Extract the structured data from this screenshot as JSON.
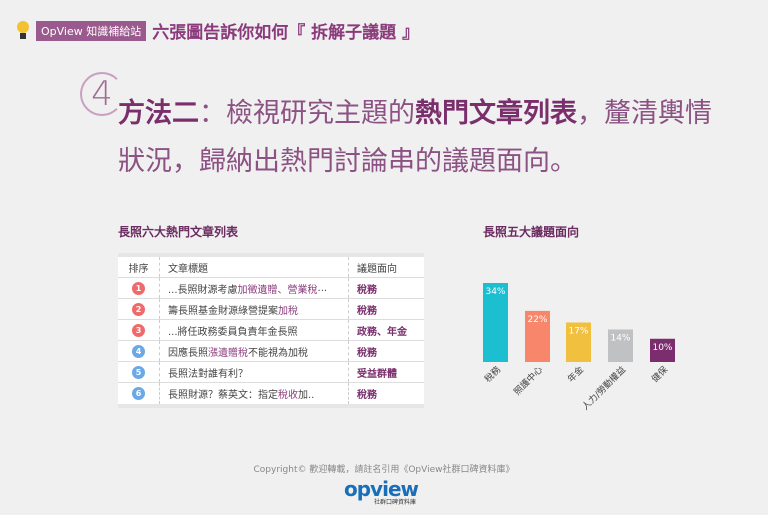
{
  "header": {
    "tag": "OpView 知識補給站",
    "title": "六張圖告訴你如何『 拆解子議題 』"
  },
  "step_number": "4",
  "main": {
    "prefix": "方法二",
    "text1": "：檢視研究主題的",
    "bold": "熱門文章列表",
    "text2": "，釐清輿情狀況，歸納出熱門討論串的議題面向。"
  },
  "table": {
    "title": "長照六大熱門文章列表",
    "headers": [
      "排序",
      "文章標題",
      "議題面向"
    ],
    "rows": [
      {
        "rank": "1",
        "color": "#ef6b6b",
        "pre": "...長照財源考慮",
        "hl": "加徵遺贈、營業稅",
        "post": "...",
        "topic": "稅務"
      },
      {
        "rank": "2",
        "color": "#ef6b6b",
        "pre": "籌長照基金財源綠營提案",
        "hl": "加稅",
        "post": "",
        "topic": "稅務"
      },
      {
        "rank": "3",
        "color": "#ef6b6b",
        "pre": "...將任政務委員負責年金長照",
        "hl": "",
        "post": "",
        "topic": "政務、年金"
      },
      {
        "rank": "4",
        "color": "#6aa8e8",
        "pre": "因應長照",
        "hl": "漲遺贈稅",
        "post": "不能視為加稅",
        "topic": "稅務"
      },
      {
        "rank": "5",
        "color": "#6aa8e8",
        "pre": "長照法對誰有利？",
        "hl": "",
        "post": "",
        "topic": "受益群體"
      },
      {
        "rank": "6",
        "color": "#6aa8e8",
        "pre": "長照財源？蔡英文：指定",
        "hl": "稅收",
        "post": "加..",
        "topic": "稅務"
      }
    ]
  },
  "chart_data": {
    "type": "bar",
    "title": "長照五大議題面向",
    "categories": [
      "稅務",
      "照護中心",
      "年金",
      "人力/勞動權益",
      "健保"
    ],
    "values": [
      34,
      22,
      17,
      14,
      10
    ],
    "value_labels": [
      "34%",
      "22%",
      "17%",
      "14%",
      "10%"
    ],
    "colors": [
      "#1bbfd0",
      "#f7866a",
      "#f2c03f",
      "#bfc1c3",
      "#7b2d6e"
    ],
    "ylim": [
      0,
      34
    ],
    "grid": false
  },
  "footer": {
    "copyright": "Copyright© 歡迎轉載，請註名引用《OpView社群口碑資料庫》",
    "logo": "opview",
    "logo_sub": "社群口碑資料庫"
  }
}
